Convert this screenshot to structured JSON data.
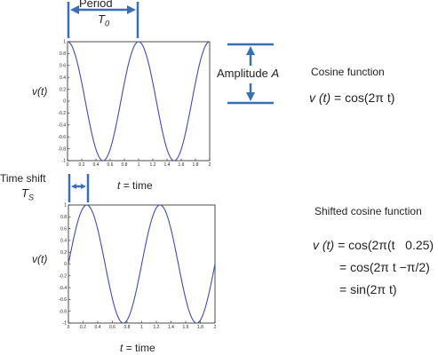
{
  "annotations": {
    "period_label": "Period",
    "period_symbol": "T",
    "period_subscript": "0",
    "amplitude_label": "Amplitude",
    "amplitude_symbol": "A",
    "timeshift_label": "Time shift",
    "timeshift_symbol": "T",
    "timeshift_subscript": "S",
    "cosine_title": "Cosine function",
    "cosine_eq_lhs": "v (t)",
    "cosine_eq_rhs": "= cos(2π t)",
    "shifted_title": "Shifted cosine function",
    "shifted_eq_line1_lhs": "v (t) =",
    "shifted_eq_line1_rhs": "cos(2π(t   0.25)",
    "shifted_eq_line2": "= cos(2π t −π/2)",
    "shifted_eq_line3": "= sin(2π t)"
  },
  "colors": {
    "curve": "#3f4fa8",
    "annotation_blue": "#3a6fb4",
    "text": "#231f20"
  },
  "chart_data": [
    {
      "type": "line",
      "title": "",
      "ylabel": "v(t)",
      "xlabel_var": "t",
      "xlabel_rest": "= time",
      "xlim": [
        0,
        2
      ],
      "ylim": [
        -1,
        1
      ],
      "xticks": [
        0,
        0.2,
        0.4,
        0.6,
        0.8,
        1,
        1.2,
        1.4,
        1.6,
        1.8,
        2
      ],
      "xtick_labels": [
        "0",
        "0.2",
        "0.4",
        "0.6",
        "0.8",
        "1",
        "1.2",
        "1.4",
        "1.6",
        "1.8",
        "2"
      ],
      "yticks": [
        1,
        0.8,
        0.6,
        0.4,
        0.2,
        0,
        -0.2,
        -0.4,
        -0.6,
        -0.8,
        -1
      ],
      "ytick_labels": [
        "1",
        "0.8",
        "0.6",
        "0.4",
        "0.2",
        "0",
        "-0.2",
        "-0.4",
        "-0.6",
        "-0.8",
        "-1"
      ],
      "series": [
        {
          "x": [
            0,
            0.1,
            0.2,
            0.3,
            0.4,
            0.5,
            0.6,
            0.7,
            0.8,
            0.9,
            1.0,
            1.1,
            1.2,
            1.3,
            1.4,
            1.5,
            1.6,
            1.7,
            1.8,
            1.9,
            2.0
          ],
          "y": [
            1,
            0.81,
            0.31,
            -0.31,
            -0.81,
            -1,
            -0.81,
            -0.31,
            0.31,
            0.81,
            1,
            0.81,
            0.31,
            -0.31,
            -0.81,
            -1,
            -0.81,
            -0.31,
            0.31,
            0.81,
            1
          ]
        }
      ]
    },
    {
      "type": "line",
      "title": "",
      "ylabel": "v(t)",
      "xlabel_var": "t",
      "xlabel_rest": "= time",
      "xlim": [
        0,
        2
      ],
      "ylim": [
        -1,
        1
      ],
      "xticks": [
        0,
        0.2,
        0.4,
        0.6,
        0.8,
        1,
        1.2,
        1.4,
        1.6,
        1.8,
        2
      ],
      "xtick_labels": [
        "0",
        "0.2",
        "0.4",
        "0.6",
        "0.8",
        "1",
        "1.2",
        "1.4",
        "1.6",
        "1.8",
        "2"
      ],
      "yticks": [
        1,
        0.8,
        0.6,
        0.4,
        0.2,
        0,
        -0.2,
        -0.4,
        -0.6,
        -0.8,
        -1
      ],
      "ytick_labels": [
        "1",
        "0.8",
        "0.6",
        "0.4",
        "0.2",
        "0",
        "-0.2",
        "-0.4",
        "-0.6",
        "-0.8",
        "-1"
      ],
      "series": [
        {
          "x": [
            0,
            0.1,
            0.2,
            0.3,
            0.4,
            0.5,
            0.6,
            0.7,
            0.8,
            0.9,
            1.0,
            1.1,
            1.2,
            1.3,
            1.4,
            1.5,
            1.6,
            1.7,
            1.8,
            1.9,
            2.0
          ],
          "y": [
            0,
            0.59,
            0.95,
            0.95,
            0.59,
            0,
            -0.59,
            -0.95,
            -0.95,
            -0.59,
            0,
            0.59,
            0.95,
            0.95,
            0.59,
            0,
            -0.59,
            -0.95,
            -0.95,
            -0.59,
            0
          ]
        }
      ]
    }
  ]
}
